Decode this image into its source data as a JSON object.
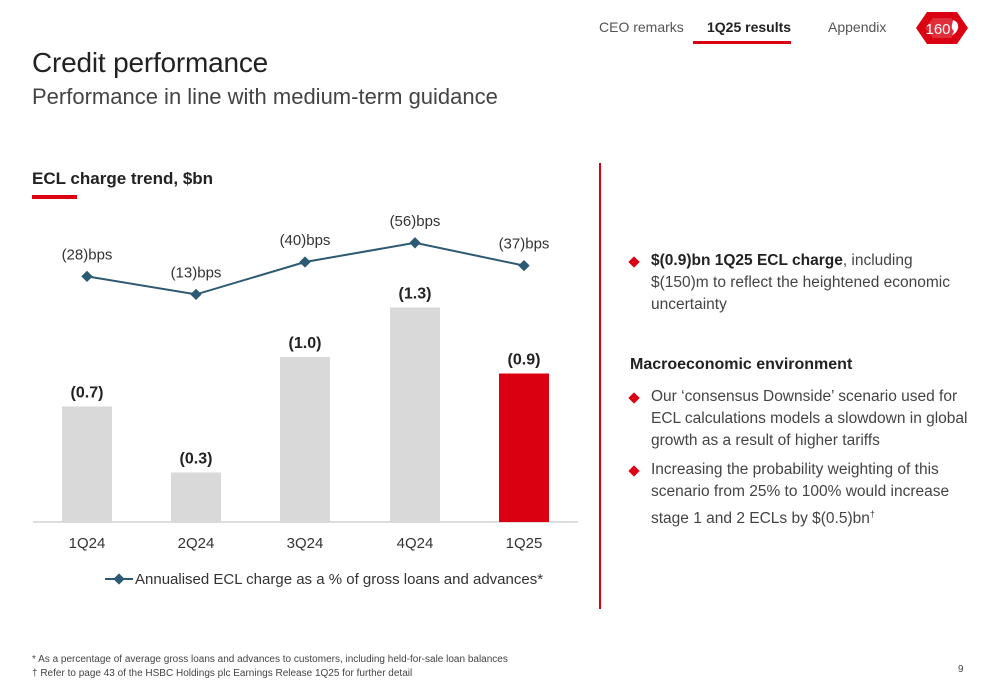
{
  "nav": {
    "items": [
      {
        "label": "CEO remarks",
        "active": false
      },
      {
        "label": "1Q25 results",
        "active": true
      },
      {
        "label": "Appendix",
        "active": false
      }
    ],
    "logo_text": "160"
  },
  "header": {
    "title": "Credit performance",
    "subtitle": "Performance in line with medium-term guidance"
  },
  "colors": {
    "accent": "#db0011",
    "bar_grey": "#d9d9d9",
    "line": "#2b5a72"
  },
  "chart_heading": "ECL charge trend, $bn",
  "chart_data": {
    "type": "bar",
    "categories": [
      "1Q24",
      "2Q24",
      "3Q24",
      "4Q24",
      "1Q25"
    ],
    "series": [
      {
        "values": [
          0.7,
          0.3,
          1.0,
          1.3,
          0.9
        ],
        "labels": [
          "(0.7)",
          "(0.3)",
          "(1.0)",
          "(1.3)",
          "(0.9)"
        ],
        "highlight_index": 4
      },
      {
        "name": "Annualised ECL charge as a % of gross loans and advances*",
        "type": "line",
        "values": [
          28,
          13,
          40,
          56,
          37
        ],
        "labels": [
          "(28)bps",
          "(13)bps",
          "(40)bps",
          "(56)bps",
          "(37)bps"
        ]
      }
    ],
    "legend_position": "bottom",
    "grid": false
  },
  "right": {
    "bullet1_bold": "$(0.9)bn 1Q25 ECL charge",
    "bullet1_rest": ", including $(150)m to reflect the heightened economic uncertainty",
    "macro_heading": "Macroeconomic environment",
    "bullet2": "Our ‘consensus Downside’ scenario used for ECL calculations models a slowdown in global growth as a result of higher tariffs",
    "bullet3": "Increasing the probability weighting of this scenario from 25% to 100% would increase stage 1 and 2 ECLs by $(0.5)bn",
    "bullet3_sup": "†"
  },
  "footnotes": [
    "* As a percentage of average gross loans and advances to customers, including held-for-sale loan balances",
    "† Refer to page 43 of the HSBC Holdings plc Earnings Release 1Q25 for further detail"
  ],
  "page_number": "9"
}
